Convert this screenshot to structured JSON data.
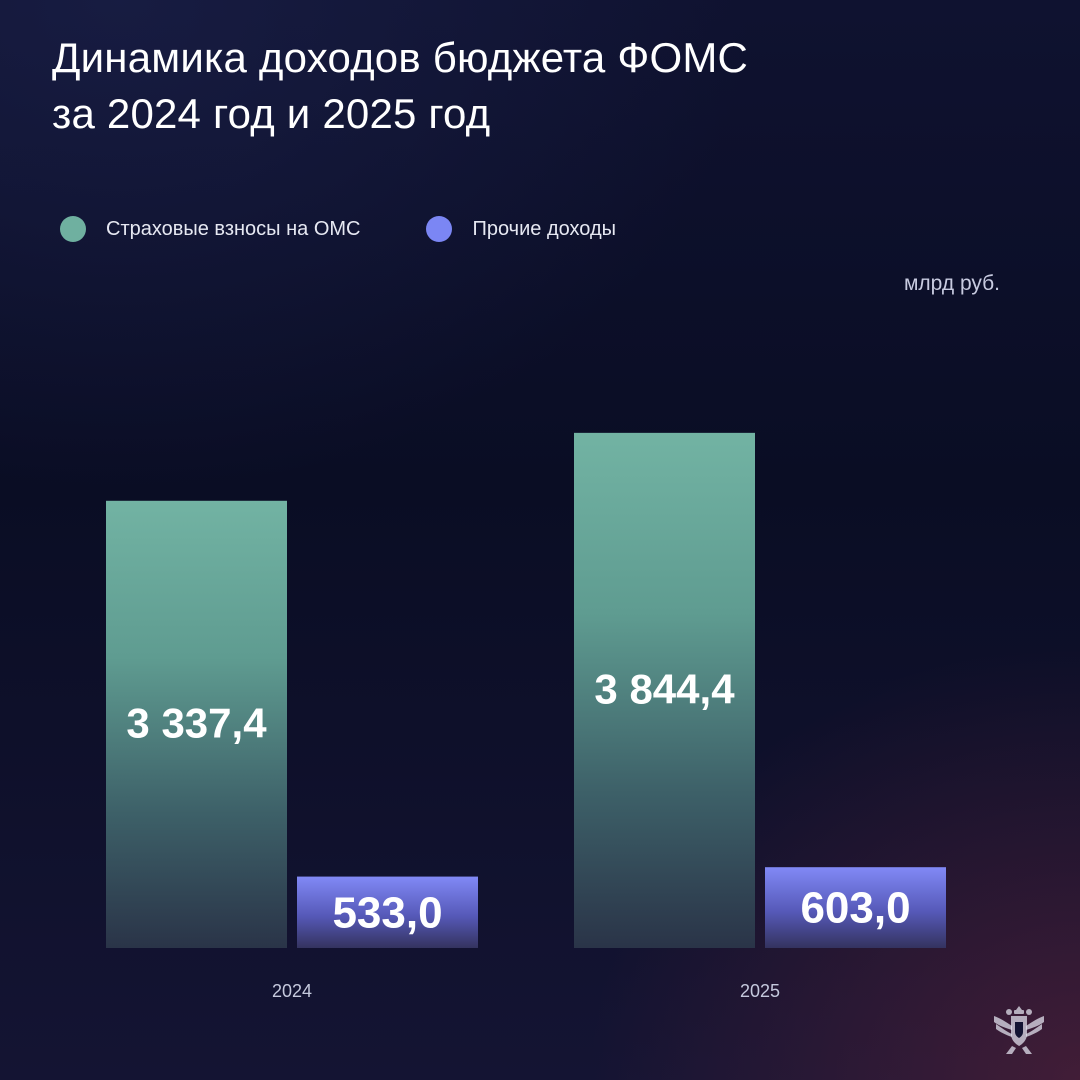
{
  "title_lines": [
    "Динамика доходов бюджета ФОМС",
    "за 2024 год и 2025 год"
  ],
  "legend": [
    {
      "label": "Страховые взносы на ОМС",
      "color": "#6fb0a0"
    },
    {
      "label": "Прочие доходы",
      "color": "#7b86f4"
    }
  ],
  "unit": "млрд руб.",
  "chart_data": {
    "type": "bar",
    "categories": [
      "2024",
      "2025"
    ],
    "series": [
      {
        "name": "Страховые взносы на ОМС",
        "values": [
          3337.4,
          3844.4
        ],
        "labels": [
          "3 337,4",
          "3 844,4"
        ],
        "color": "#6fb0a0"
      },
      {
        "name": "Прочие доходы",
        "values": [
          533.0,
          603.0
        ],
        "labels": [
          "533,0",
          "603,0"
        ],
        "color": "#7b86f4"
      }
    ],
    "ylim": [
      0,
      4000
    ],
    "grid": false,
    "legend_position": "top-left"
  },
  "colors": {
    "background": "#0b0e26",
    "text": "#ffffff",
    "muted_text": "#c5c9dd"
  },
  "emblem_icon": "double-headed-eagle-icon"
}
